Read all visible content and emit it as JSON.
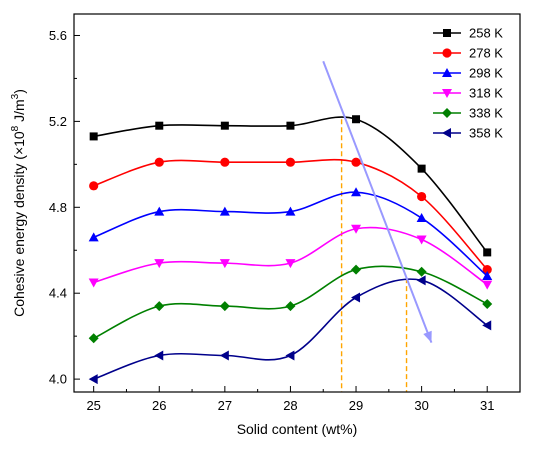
{
  "chart_data": {
    "type": "line",
    "title": "",
    "xlabel": "Solid content (wt%)",
    "ylabel_main": "Cohesive energy density (×10",
    "ylabel_sup1": "8",
    "ylabel_mid": " J/m",
    "ylabel_sup2": "3",
    "ylabel_end": ")",
    "xlim": [
      24.7,
      31.5
    ],
    "ylim": [
      3.94,
      5.7
    ],
    "x_ticks": [
      25,
      26,
      27,
      28,
      29,
      30,
      31
    ],
    "y_ticks": [
      4.0,
      4.4,
      4.8,
      5.2,
      5.6
    ],
    "grid": false,
    "legend_position": "top-right",
    "x": [
      25,
      26,
      27,
      28,
      29,
      30,
      31
    ],
    "series": [
      {
        "name": "258 K",
        "color": "#000000",
        "marker": "square",
        "values": [
          5.13,
          5.18,
          5.18,
          5.18,
          5.21,
          4.98,
          4.59
        ]
      },
      {
        "name": "278 K",
        "color": "#ff0000",
        "marker": "circle",
        "values": [
          4.9,
          5.01,
          5.01,
          5.01,
          5.01,
          4.85,
          4.51
        ]
      },
      {
        "name": "298 K",
        "color": "#0000ff",
        "marker": "triangle-up",
        "values": [
          4.66,
          4.78,
          4.78,
          4.78,
          4.87,
          4.75,
          4.48
        ]
      },
      {
        "name": "318 K",
        "color": "#ff00ff",
        "marker": "triangle-down",
        "values": [
          4.45,
          4.54,
          4.54,
          4.54,
          4.7,
          4.65,
          4.44
        ]
      },
      {
        "name": "338 K",
        "color": "#008000",
        "marker": "diamond",
        "values": [
          4.19,
          4.34,
          4.34,
          4.34,
          4.51,
          4.5,
          4.35
        ]
      },
      {
        "name": "358 K",
        "color": "#00008b",
        "marker": "triangle-left",
        "values": [
          4.0,
          4.11,
          4.11,
          4.11,
          4.38,
          4.46,
          4.25
        ]
      }
    ],
    "annotations": {
      "dashed_lines_x": [
        28.78,
        29.77
      ],
      "dashed_color": "#ffa500",
      "arrow_from": [
        28.5,
        5.48
      ],
      "arrow_to": [
        30.15,
        4.17
      ],
      "arrow_color": "#9999ff"
    }
  }
}
